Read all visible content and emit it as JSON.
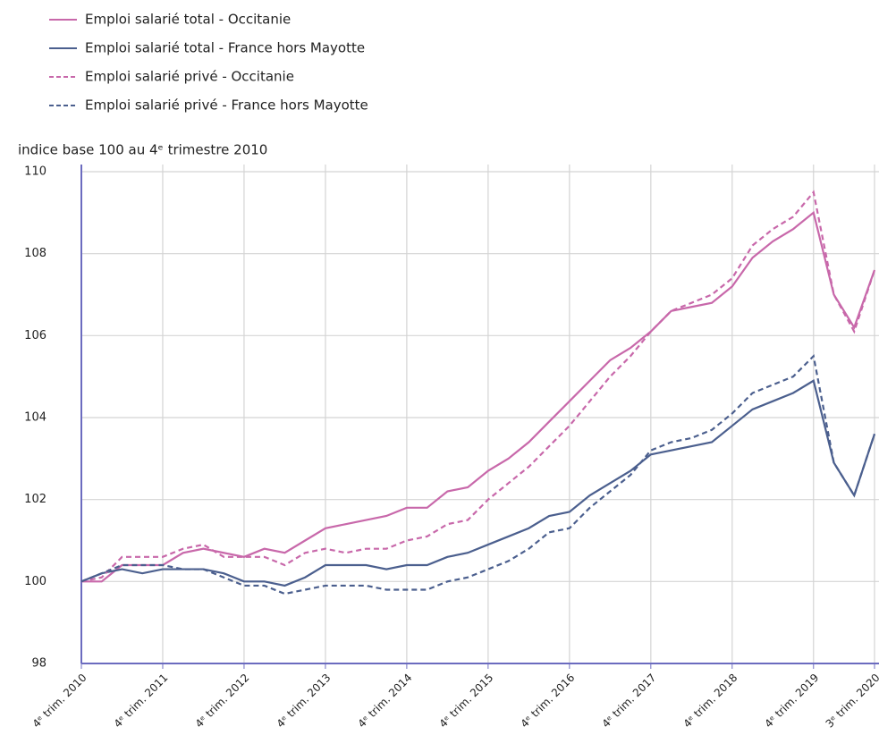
{
  "chart_data": {
    "type": "line",
    "y_axis_title": "indice base 100 au 4ᵉ trimestre 2010",
    "categories": [
      "4ᵉ trim. 2010",
      null,
      null,
      null,
      "4ᵉ trim. 2011",
      null,
      null,
      null,
      "4ᵉ trim. 2012",
      null,
      null,
      null,
      "4ᵉ trim. 2013",
      null,
      null,
      null,
      "4ᵉ trim. 2014",
      null,
      null,
      null,
      "4ᵉ trim. 2015",
      null,
      null,
      null,
      "4ᵉ trim. 2016",
      null,
      null,
      null,
      "4ᵉ trim. 2017",
      null,
      null,
      null,
      "4ᵉ trim. 2018",
      null,
      null,
      null,
      "4ᵉ trim. 2019",
      null,
      null,
      "3ᵉ trim. 2020"
    ],
    "series": [
      {
        "name": "Emploi salarié total - Occitanie",
        "color": "#c868aa",
        "dash": false,
        "values": [
          100,
          100.0,
          100.4,
          100.4,
          100.4,
          100.7,
          100.8,
          100.7,
          100.6,
          100.8,
          100.7,
          101.0,
          101.3,
          101.4,
          101.5,
          101.6,
          101.8,
          101.8,
          102.2,
          102.3,
          102.7,
          103.0,
          103.4,
          103.9,
          104.4,
          104.9,
          105.4,
          105.7,
          106.1,
          106.6,
          106.7,
          106.8,
          107.2,
          107.9,
          108.3,
          108.6,
          109.0,
          107.0,
          106.2,
          107.6
        ]
      },
      {
        "name": "Emploi salarié total - France hors Mayotte",
        "color": "#4b5f8e",
        "dash": false,
        "values": [
          100,
          100.2,
          100.3,
          100.2,
          100.3,
          100.3,
          100.3,
          100.2,
          100.0,
          100.0,
          99.9,
          100.1,
          100.4,
          100.4,
          100.4,
          100.3,
          100.4,
          100.4,
          100.6,
          100.7,
          100.9,
          101.1,
          101.3,
          101.6,
          101.7,
          102.1,
          102.4,
          102.7,
          103.1,
          103.2,
          103.3,
          103.4,
          103.8,
          104.2,
          104.4,
          104.6,
          104.9,
          102.9,
          102.1,
          103.6
        ]
      },
      {
        "name": "Emploi salarié privé - Occitanie",
        "color": "#c868aa",
        "dash": true,
        "values": [
          100,
          100.1,
          100.6,
          100.6,
          100.6,
          100.8,
          100.9,
          100.6,
          100.6,
          100.6,
          100.4,
          100.7,
          100.8,
          100.7,
          100.8,
          100.8,
          101.0,
          101.1,
          101.4,
          101.5,
          102.0,
          102.4,
          102.8,
          103.3,
          103.8,
          104.4,
          105.0,
          105.5,
          106.1,
          106.6,
          106.8,
          107.0,
          107.4,
          108.2,
          108.6,
          108.9,
          109.5,
          107.0,
          106.1,
          107.6
        ]
      },
      {
        "name": "Emploi salarié privé - France hors Mayotte",
        "color": "#4b5f8e",
        "dash": true,
        "values": [
          100,
          100.2,
          100.4,
          100.4,
          100.4,
          100.3,
          100.3,
          100.1,
          99.9,
          99.9,
          99.7,
          99.8,
          99.9,
          99.9,
          99.9,
          99.8,
          99.8,
          99.8,
          100.0,
          100.1,
          100.3,
          100.5,
          100.8,
          101.2,
          101.3,
          101.8,
          102.2,
          102.6,
          103.2,
          103.4,
          103.5,
          103.7,
          104.1,
          104.6,
          104.8,
          105.0,
          105.5,
          102.9,
          102.1,
          103.6
        ]
      }
    ],
    "ylim": [
      98,
      110
    ],
    "yticks": [
      98,
      100,
      102,
      104,
      106,
      108,
      110
    ],
    "grid": true
  }
}
